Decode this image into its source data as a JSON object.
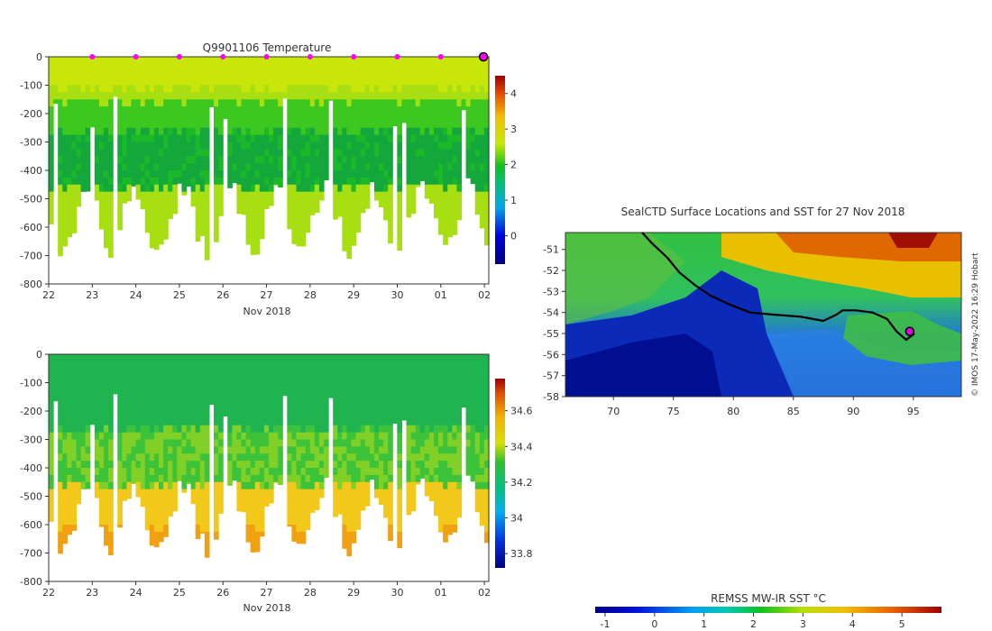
{
  "credit": "© IMOS 17-May-2022 16:29 Hobart",
  "sst_colorbar": {
    "label": "REMSS MW-IR SST °C",
    "ticks": [
      -1,
      0,
      1,
      2,
      3,
      4,
      5
    ],
    "range": [
      -1.2,
      5.8
    ]
  },
  "chart_data": [
    {
      "type": "heatmap",
      "title": "Q9901106  Temperature",
      "xlabel": "Nov 2018",
      "x_tick_labels": [
        "22",
        "23",
        "24",
        "25",
        "26",
        "27",
        "28",
        "29",
        "30",
        "01",
        "02"
      ],
      "ylabel": "",
      "ylim": [
        -800,
        0
      ],
      "y_ticks": [
        0,
        -100,
        -200,
        -300,
        -400,
        -500,
        -600,
        -700,
        -800
      ],
      "colorbar": {
        "ticks": [
          0,
          1,
          2,
          3,
          4
        ],
        "range": [
          -0.8,
          4.5
        ]
      },
      "surface_markers_days": [
        "23",
        "24",
        "25",
        "26",
        "27",
        "28",
        "29",
        "30",
        "01"
      ],
      "current_marker_day": "02",
      "values_description_levels": {
        "surface_0_100m": 2.8,
        "upper_100_250m": 2.5,
        "mid_250_450m": 1.6,
        "deep_450_750m": 2.6
      }
    },
    {
      "type": "heatmap",
      "title": "",
      "xlabel": "Nov 2018",
      "x_tick_labels": [
        "22",
        "23",
        "24",
        "25",
        "26",
        "27",
        "28",
        "29",
        "30",
        "01",
        "02"
      ],
      "ylabel": "",
      "ylim": [
        -800,
        0
      ],
      "y_ticks": [
        0,
        -100,
        -200,
        -300,
        -400,
        -500,
        -600,
        -700,
        -800
      ],
      "colorbar": {
        "ticks": [
          33.8,
          34,
          34.2,
          34.4,
          34.6
        ],
        "tick_labels": [
          "33.8",
          "34",
          "34.2",
          "34.4",
          "34.6"
        ],
        "range": [
          33.72,
          34.78
        ]
      },
      "values_description_levels": {
        "surface_0_250m": 34.15,
        "mid_250_450m": 34.3,
        "deep_450_750m": 34.55
      }
    },
    {
      "type": "heatmap",
      "title": "SealCTD Surface Locations and SST for 27 Nov 2018",
      "xlabel": "",
      "ylabel": "",
      "xlim": [
        66,
        99
      ],
      "ylim": [
        -58,
        -50.2
      ],
      "x_ticks": [
        70,
        75,
        80,
        85,
        90,
        95
      ],
      "y_ticks": [
        -51,
        -52,
        -53,
        -54,
        -55,
        -56,
        -57,
        -58
      ],
      "track": [
        [
          72.4,
          -50.2
        ],
        [
          73.2,
          -50.7
        ],
        [
          74.5,
          -51.4
        ],
        [
          75.5,
          -52.1
        ],
        [
          76.8,
          -52.7
        ],
        [
          78.1,
          -53.2
        ],
        [
          79.6,
          -53.6
        ],
        [
          81.4,
          -54.0
        ],
        [
          83.3,
          -54.1
        ],
        [
          85.6,
          -54.2
        ],
        [
          87.5,
          -54.4
        ],
        [
          88.6,
          -54.1
        ],
        [
          89.1,
          -53.9
        ],
        [
          90.2,
          -53.9
        ],
        [
          91.6,
          -54.0
        ],
        [
          92.8,
          -54.3
        ],
        [
          93.6,
          -54.9
        ],
        [
          94.4,
          -55.3
        ],
        [
          95.1,
          -55.0
        ]
      ],
      "current_position": [
        94.7,
        -54.9
      ]
    }
  ]
}
